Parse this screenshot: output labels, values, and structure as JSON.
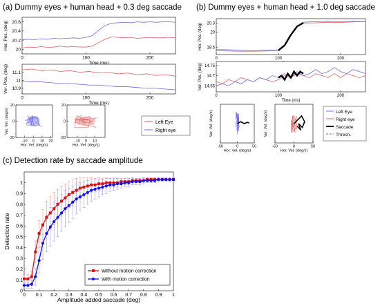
{
  "panels": {
    "a": {
      "title": "(a) Dummy eyes + human head + 0.3 deg saccade"
    },
    "b": {
      "title": "(b) Dummy eyes + human head + 1.0 deg saccade"
    },
    "c": {
      "title": "(c) Detection rate by saccade amplitude"
    }
  },
  "colors": {
    "left_eye": "#e06060",
    "right_eye": "#6a6ae6",
    "saccade": "#000000",
    "thresh": "#777777",
    "without": "#dd1111",
    "with": "#1111ee",
    "err_without": "#ee9090",
    "err_with": "#9b9bee"
  },
  "chart_data": [
    {
      "id": "a-hor",
      "type": "line",
      "xlabel": "Time (ms)",
      "ylabel": "Hor. Pos. (deg)",
      "xlim": [
        0,
        240
      ],
      "ylim": [
        19.9,
        20.7
      ],
      "xticks": [
        0,
        100,
        200
      ],
      "yticks": [
        20,
        20.2,
        20.4,
        20.6
      ],
      "ytick_labels": [
        "20",
        "20.2",
        "20.4",
        "20.6"
      ],
      "series": [
        {
          "key": "left",
          "x": [
            0,
            10,
            20,
            30,
            40,
            50,
            60,
            70,
            80,
            90,
            100,
            110,
            120,
            130,
            140,
            150,
            160,
            170,
            180,
            190,
            200,
            210,
            220,
            230,
            240
          ],
          "y": [
            20.03,
            20.05,
            20.04,
            20.06,
            20.04,
            20.05,
            20.07,
            20.05,
            20.06,
            20.05,
            20.05,
            20.07,
            20.15,
            20.22,
            20.27,
            20.26,
            20.25,
            20.26,
            20.24,
            20.25,
            20.26,
            20.25,
            20.25,
            20.26,
            20.25
          ]
        },
        {
          "key": "right",
          "x": [
            0,
            10,
            20,
            30,
            40,
            50,
            60,
            70,
            80,
            90,
            100,
            110,
            120,
            130,
            140,
            150,
            160,
            170,
            180,
            190,
            200,
            210,
            220,
            230,
            240
          ],
          "y": [
            20.21,
            20.22,
            20.21,
            20.23,
            20.22,
            20.24,
            20.23,
            20.24,
            20.25,
            20.24,
            20.26,
            20.3,
            20.42,
            20.52,
            20.57,
            20.58,
            20.59,
            20.58,
            20.6,
            20.59,
            20.6,
            20.59,
            20.6,
            20.6,
            20.59
          ]
        }
      ]
    },
    {
      "id": "a-ver",
      "type": "line",
      "xlabel": "Time (ms)",
      "ylabel": "Ver. Pos. (deg)",
      "xlim": [
        0,
        240
      ],
      "ylim": [
        10.83,
        11.2
      ],
      "xticks": [
        0,
        100,
        200
      ],
      "yticks": [
        10.9,
        11,
        11.1
      ],
      "ytick_labels": [
        "10.9",
        "11",
        "11.1"
      ],
      "series": [
        {
          "key": "left",
          "x": [
            0,
            15,
            30,
            45,
            60,
            75,
            90,
            105,
            120,
            135,
            150,
            165,
            180,
            195,
            210,
            225,
            240
          ],
          "y": [
            11.13,
            11.14,
            11.12,
            11.13,
            11.11,
            11.12,
            11.1,
            11.11,
            11.09,
            11.1,
            11.08,
            11.09,
            11.07,
            11.08,
            11.06,
            11.07,
            11.05
          ]
        },
        {
          "key": "right",
          "x": [
            0,
            15,
            30,
            45,
            60,
            75,
            90,
            105,
            120,
            135,
            150,
            165,
            180,
            195,
            210,
            225,
            240
          ],
          "y": [
            10.99,
            10.98,
            10.98,
            10.97,
            10.96,
            10.96,
            10.95,
            10.94,
            10.94,
            10.93,
            10.92,
            10.92,
            10.91,
            10.9,
            10.9,
            10.89,
            10.88
          ]
        }
      ]
    },
    {
      "id": "a-vel-left",
      "type": "scatter",
      "xlabel": "Hor. Vel. (deg/s)",
      "ylabel": "Ver. Vel. (deg/s)",
      "xlim": [
        -20,
        22
      ],
      "ylim": [
        -20,
        20
      ],
      "xticks": [
        -10,
        0,
        10,
        20
      ],
      "yticks": [
        -20,
        0,
        20
      ],
      "ytick_labels": [
        "-20",
        "0",
        "20"
      ],
      "series": [
        {
          "key": "right",
          "cx": 0,
          "cy": 0,
          "sx": 5,
          "sy": 4,
          "n": 28
        }
      ]
    },
    {
      "id": "a-vel-right",
      "type": "scatter",
      "xlabel": "Hor. Vel. (deg/s)",
      "ylabel": "",
      "xlim": [
        -22,
        22
      ],
      "ylim": [
        -20,
        20
      ],
      "xticks": [
        -10,
        0,
        10
      ],
      "yticks": [
        -20,
        0,
        20
      ],
      "ytick_labels": [
        "-20",
        "0",
        "20"
      ],
      "series": [
        {
          "key": "left",
          "cx": 0,
          "cy": 0,
          "sx": 7,
          "sy": 4,
          "n": 28
        }
      ]
    },
    {
      "id": "b-hor",
      "type": "line",
      "xlabel": "Time (ms)",
      "ylabel": "Hor. Pos. (deg)",
      "xlim": [
        0,
        240
      ],
      "ylim": [
        19.25,
        20.45
      ],
      "xticks": [
        0,
        100,
        200
      ],
      "yticks": [
        19.5,
        20,
        20.3
      ],
      "ytick_labels": [
        "19.5",
        "20",
        "20.3"
      ],
      "series": [
        {
          "key": "left",
          "x": [
            0,
            20,
            40,
            60,
            80,
            100,
            110,
            120,
            130,
            140,
            160,
            180,
            200,
            220,
            240
          ],
          "y": [
            19.38,
            19.37,
            19.36,
            19.36,
            19.37,
            19.38,
            19.55,
            19.9,
            20.18,
            20.3,
            20.31,
            20.33,
            20.32,
            20.34,
            20.35
          ]
        },
        {
          "key": "right",
          "x": [
            0,
            20,
            40,
            60,
            80,
            100,
            110,
            120,
            130,
            140,
            160,
            180,
            200,
            220,
            240
          ],
          "y": [
            19.42,
            19.41,
            19.39,
            19.38,
            19.39,
            19.4,
            19.58,
            19.93,
            20.2,
            20.33,
            20.35,
            20.36,
            20.34,
            20.36,
            20.35
          ]
        },
        {
          "key": "saccade",
          "x": [
            100,
            110,
            120,
            130,
            140
          ],
          "y": [
            19.39,
            19.56,
            19.91,
            20.19,
            20.31
          ]
        }
      ]
    },
    {
      "id": "b-ver",
      "type": "line",
      "xlabel": "Time (ms)",
      "ylabel": "Ver. Pos. (deg)",
      "xlim": [
        0,
        240
      ],
      "ylim": [
        14.62,
        14.77
      ],
      "xticks": [
        0,
        100,
        200
      ],
      "yticks": [
        14.65,
        14.7,
        14.75
      ],
      "ytick_labels": [
        "14.65",
        "14.7",
        "14.75"
      ],
      "series": [
        {
          "key": "left",
          "x": [
            0,
            10,
            20,
            30,
            40,
            50,
            60,
            70,
            80,
            90,
            100,
            110,
            120,
            130,
            140,
            150,
            160,
            170,
            180,
            190,
            200,
            210,
            220,
            230,
            240
          ],
          "y": [
            14.67,
            14.66,
            14.68,
            14.67,
            14.69,
            14.68,
            14.67,
            14.69,
            14.68,
            14.67,
            14.68,
            14.7,
            14.69,
            14.71,
            14.7,
            14.69,
            14.71,
            14.7,
            14.69,
            14.71,
            14.69,
            14.71,
            14.7,
            14.69,
            14.7
          ]
        },
        {
          "key": "right",
          "x": [
            0,
            10,
            20,
            30,
            40,
            50,
            60,
            70,
            80,
            90,
            100,
            110,
            120,
            130,
            140,
            150,
            160,
            170,
            180,
            190,
            200,
            210,
            220,
            230,
            240
          ],
          "y": [
            14.65,
            14.66,
            14.65,
            14.67,
            14.66,
            14.68,
            14.67,
            14.69,
            14.68,
            14.7,
            14.69,
            14.71,
            14.69,
            14.72,
            14.7,
            14.71,
            14.73,
            14.71,
            14.72,
            14.74,
            14.72,
            14.71,
            14.73,
            14.72,
            14.71
          ]
        },
        {
          "key": "saccade",
          "x": [
            100,
            105,
            110,
            115,
            120,
            125,
            130,
            135,
            140
          ],
          "y": [
            14.69,
            14.7,
            14.68,
            14.71,
            14.69,
            14.72,
            14.7,
            14.72,
            14.71
          ]
        }
      ]
    },
    {
      "id": "b-vel-left",
      "type": "scatter",
      "xlabel": "Hor. Vel. (deg/s)",
      "ylabel": "Ver. Vel. (deg/s)",
      "xlim": [
        -50,
        50
      ],
      "ylim": [
        -30,
        30
      ],
      "xticks": [
        -50,
        0,
        50
      ],
      "yticks": [],
      "ytick_labels": [],
      "series": [
        {
          "key": "right",
          "cx": 0,
          "cy": 0,
          "sx": 3,
          "sy": 9,
          "n": 24
        },
        {
          "key": "saccade",
          "x": [
            0,
            10,
            20,
            30,
            35
          ],
          "y": [
            0,
            3,
            0,
            2,
            1
          ]
        }
      ]
    },
    {
      "id": "b-vel-right",
      "type": "scatter",
      "xlabel": "Hor. Vel. (deg/s)",
      "ylabel": "Ver. Vel. (deg/s)",
      "xlim": [
        -50,
        50
      ],
      "ylim": [
        -30,
        30
      ],
      "xticks": [
        -50,
        0,
        50
      ],
      "yticks": [],
      "ytick_labels": [],
      "series": [
        {
          "key": "left",
          "cx": 0,
          "cy": 0,
          "sx": 4,
          "sy": 8,
          "n": 28
        },
        {
          "key": "saccade",
          "x": [
            0,
            10,
            20,
            28,
            22,
            12,
            18,
            8
          ],
          "y": [
            0,
            6,
            12,
            3,
            -6,
            0,
            -10,
            -4
          ]
        }
      ]
    },
    {
      "id": "c",
      "type": "line",
      "xlabel": "Amplitude added saccade (deg)",
      "ylabel": "Detection rate",
      "xlim": [
        0,
        1
      ],
      "ylim": [
        0,
        1.1
      ],
      "xticks": [
        0,
        0.1,
        0.2,
        0.3,
        0.4,
        0.5,
        0.6,
        0.7,
        0.8,
        0.9,
        1
      ],
      "yticks": [
        0,
        0.1,
        0.2,
        0.3,
        0.4,
        0.5,
        0.6,
        0.7,
        0.8,
        0.9,
        1
      ],
      "ytick_labels": [
        "0",
        "0.1",
        "0.2",
        "0.3",
        "0.4",
        "0.5",
        "0.6",
        "0.7",
        "0.8",
        "0.9",
        "1"
      ],
      "x": [
        0,
        0.025,
        0.05,
        0.075,
        0.1,
        0.125,
        0.15,
        0.175,
        0.2,
        0.225,
        0.25,
        0.275,
        0.3,
        0.325,
        0.35,
        0.375,
        0.4,
        0.425,
        0.45,
        0.475,
        0.5,
        0.525,
        0.55,
        0.575,
        0.6,
        0.625,
        0.65,
        0.675,
        0.7,
        0.725,
        0.75,
        0.775,
        0.8,
        0.825,
        0.85,
        0.875,
        0.9,
        0.925,
        0.95,
        0.975,
        1
      ],
      "series": [
        {
          "key": "without",
          "name": "Without motion correction",
          "values": [
            0.11,
            0.11,
            0.13,
            0.36,
            0.53,
            0.61,
            0.68,
            0.72,
            0.76,
            0.8,
            0.83,
            0.86,
            0.89,
            0.91,
            0.93,
            0.95,
            0.96,
            0.97,
            0.98,
            0.98,
            0.99,
            0.99,
            1.0,
            1.0,
            1.0,
            1.0,
            1.01,
            1.01,
            1.01,
            1.02,
            1.02,
            1.02,
            1.02,
            1.03,
            1.03,
            1.03,
            1.03,
            1.03,
            1.03,
            1.03,
            1.03
          ],
          "err": [
            0.04,
            0.04,
            0.05,
            0.1,
            0.12,
            0.14,
            0.15,
            0.15,
            0.15,
            0.14,
            0.14,
            0.13,
            0.12,
            0.12,
            0.11,
            0.1,
            0.09,
            0.08,
            0.07,
            0.06,
            0.06,
            0.05,
            0.05,
            0.04,
            0.04,
            0.04,
            0.03,
            0.03,
            0.03,
            0.03,
            0.02,
            0.02,
            0.02,
            0.02,
            0.02,
            0.02,
            0.02,
            0.02,
            0.02,
            0.02,
            0.02
          ]
        },
        {
          "key": "with",
          "name": "With motion correction",
          "values": [
            0.05,
            0.05,
            0.06,
            0.13,
            0.28,
            0.44,
            0.53,
            0.59,
            0.64,
            0.68,
            0.72,
            0.76,
            0.79,
            0.82,
            0.85,
            0.87,
            0.89,
            0.91,
            0.93,
            0.94,
            0.95,
            0.96,
            0.97,
            0.98,
            0.98,
            0.99,
            0.99,
            1.0,
            1.0,
            1.01,
            1.01,
            1.01,
            1.02,
            1.02,
            1.02,
            1.02,
            1.03,
            1.03,
            1.03,
            1.03,
            1.03
          ],
          "err": [
            0.03,
            0.03,
            0.04,
            0.08,
            0.12,
            0.15,
            0.17,
            0.18,
            0.18,
            0.18,
            0.17,
            0.17,
            0.16,
            0.15,
            0.14,
            0.13,
            0.12,
            0.11,
            0.1,
            0.09,
            0.08,
            0.07,
            0.07,
            0.06,
            0.05,
            0.05,
            0.04,
            0.04,
            0.04,
            0.03,
            0.03,
            0.03,
            0.03,
            0.02,
            0.02,
            0.02,
            0.02,
            0.02,
            0.02,
            0.02,
            0.02
          ]
        }
      ],
      "legend_position": "bottom-right"
    }
  ],
  "legend_a": {
    "left": "Left Eye",
    "right": "Right eye"
  },
  "legend_b": {
    "left": "Left Eye",
    "right": "Right eye",
    "saccade": "Saccade",
    "thresh": "Thresh."
  }
}
